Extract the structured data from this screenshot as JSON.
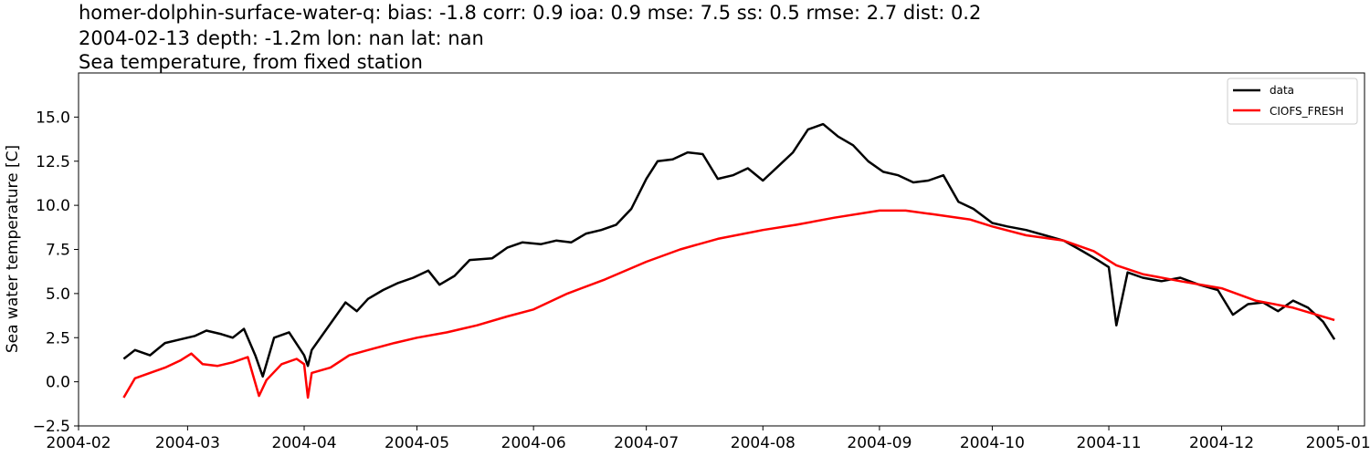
{
  "chart_data": {
    "type": "line",
    "title_lines": [
      "homer-dolphin-surface-water-q: bias: -1.8  corr: 0.9  ioa: 0.9  mse: 7.5  ss: 0.5  rmse: 2.7  dist: 0.2",
      "2004-02-13 depth: -1.2m lon: nan lat: nan",
      "Sea temperature, from fixed station"
    ],
    "xlabel": "",
    "ylabel": "Sea water temperature [C]",
    "xlim": [
      "2004-02-01",
      "2005-01-08"
    ],
    "ylim": [
      -2.5,
      17.5
    ],
    "x_ticks": [
      "2004-02",
      "2004-03",
      "2004-04",
      "2004-05",
      "2004-06",
      "2004-07",
      "2004-08",
      "2004-09",
      "2004-10",
      "2004-11",
      "2004-12",
      "2005-01"
    ],
    "y_ticks": [
      "−2.5",
      "0.0",
      "2.5",
      "5.0",
      "7.5",
      "10.0",
      "12.5",
      "15.0"
    ],
    "y_tick_values": [
      -2.5,
      0.0,
      2.5,
      5.0,
      7.5,
      10.0,
      12.5,
      15.0
    ],
    "legend_position": "top-right",
    "grid": false,
    "series": [
      {
        "name": "data",
        "color": "#000000",
        "dates": [
          "2004-02-13",
          "2004-02-16",
          "2004-02-20",
          "2004-02-24",
          "2004-02-28",
          "2004-03-03",
          "2004-03-06",
          "2004-03-10",
          "2004-03-13",
          "2004-03-16",
          "2004-03-19",
          "2004-03-21",
          "2004-03-24",
          "2004-03-28",
          "2004-04-01",
          "2004-04-02",
          "2004-04-03",
          "2004-04-12",
          "2004-04-15",
          "2004-04-18",
          "2004-04-22",
          "2004-04-26",
          "2004-04-30",
          "2004-05-04",
          "2004-05-07",
          "2004-05-11",
          "2004-05-15",
          "2004-05-21",
          "2004-05-25",
          "2004-05-29",
          "2004-06-03",
          "2004-06-07",
          "2004-06-11",
          "2004-06-15",
          "2004-06-19",
          "2004-06-23",
          "2004-06-27",
          "2004-07-01",
          "2004-07-04",
          "2004-07-08",
          "2004-07-12",
          "2004-07-16",
          "2004-07-20",
          "2004-07-24",
          "2004-07-28",
          "2004-08-01",
          "2004-08-05",
          "2004-08-09",
          "2004-08-13",
          "2004-08-17",
          "2004-08-21",
          "2004-08-25",
          "2004-08-29",
          "2004-09-02",
          "2004-09-06",
          "2004-09-10",
          "2004-09-14",
          "2004-09-18",
          "2004-09-22",
          "2004-09-26",
          "2004-10-01",
          "2004-10-05",
          "2004-10-10",
          "2004-10-15",
          "2004-10-20",
          "2004-10-25",
          "2004-10-29",
          "2004-11-01",
          "2004-11-03",
          "2004-11-06",
          "2004-11-10",
          "2004-11-15",
          "2004-11-20",
          "2004-11-25",
          "2004-11-30",
          "2004-12-04",
          "2004-12-08",
          "2004-12-12",
          "2004-12-16",
          "2004-12-20",
          "2004-12-24",
          "2004-12-28",
          "2004-12-31"
        ],
        "values": [
          1.3,
          1.8,
          1.5,
          2.2,
          2.4,
          2.6,
          2.9,
          2.7,
          2.5,
          3.0,
          1.5,
          0.3,
          2.5,
          2.8,
          1.5,
          0.9,
          1.8,
          4.5,
          4.0,
          4.7,
          5.2,
          5.6,
          5.9,
          6.3,
          5.5,
          6.0,
          6.9,
          7.0,
          7.6,
          7.9,
          7.8,
          8.0,
          7.9,
          8.4,
          8.6,
          8.9,
          9.8,
          11.5,
          12.5,
          12.6,
          13.0,
          12.9,
          11.5,
          11.7,
          12.1,
          11.4,
          12.2,
          13.0,
          14.3,
          14.6,
          13.9,
          13.4,
          12.5,
          11.9,
          11.7,
          11.3,
          11.4,
          11.7,
          10.2,
          9.8,
          9.0,
          8.8,
          8.6,
          8.3,
          8.0,
          7.4,
          6.9,
          6.5,
          3.2,
          6.2,
          5.9,
          5.7,
          5.9,
          5.5,
          5.2,
          3.8,
          4.4,
          4.5,
          4.0,
          4.6,
          4.2,
          3.4,
          2.4
        ]
      },
      {
        "name": "CIOFS_FRESH",
        "color": "#ff0000",
        "dates": [
          "2004-02-13",
          "2004-02-16",
          "2004-02-20",
          "2004-02-24",
          "2004-02-28",
          "2004-03-02",
          "2004-03-05",
          "2004-03-09",
          "2004-03-13",
          "2004-03-17",
          "2004-03-20",
          "2004-03-22",
          "2004-03-26",
          "2004-03-30",
          "2004-04-01",
          "2004-04-02",
          "2004-04-03",
          "2004-04-08",
          "2004-04-13",
          "2004-04-18",
          "2004-04-25",
          "2004-05-01",
          "2004-05-09",
          "2004-05-17",
          "2004-05-25",
          "2004-06-01",
          "2004-06-10",
          "2004-06-20",
          "2004-07-01",
          "2004-07-10",
          "2004-07-20",
          "2004-08-01",
          "2004-08-10",
          "2004-08-20",
          "2004-09-01",
          "2004-09-08",
          "2004-09-15",
          "2004-09-25",
          "2004-10-01",
          "2004-10-10",
          "2004-10-20",
          "2004-10-28",
          "2004-11-03",
          "2004-11-10",
          "2004-11-20",
          "2004-12-01",
          "2004-12-10",
          "2004-12-20",
          "2004-12-31"
        ],
        "values": [
          -0.9,
          0.2,
          0.5,
          0.8,
          1.2,
          1.6,
          1.0,
          0.9,
          1.1,
          1.4,
          -0.8,
          0.1,
          1.0,
          1.3,
          1.0,
          -0.9,
          0.5,
          0.8,
          1.5,
          1.8,
          2.2,
          2.5,
          2.8,
          3.2,
          3.7,
          4.1,
          5.0,
          5.8,
          6.8,
          7.5,
          8.1,
          8.6,
          8.9,
          9.3,
          9.7,
          9.7,
          9.5,
          9.2,
          8.8,
          8.3,
          8.0,
          7.4,
          6.6,
          6.1,
          5.7,
          5.3,
          4.6,
          4.2,
          3.5
        ]
      }
    ]
  }
}
